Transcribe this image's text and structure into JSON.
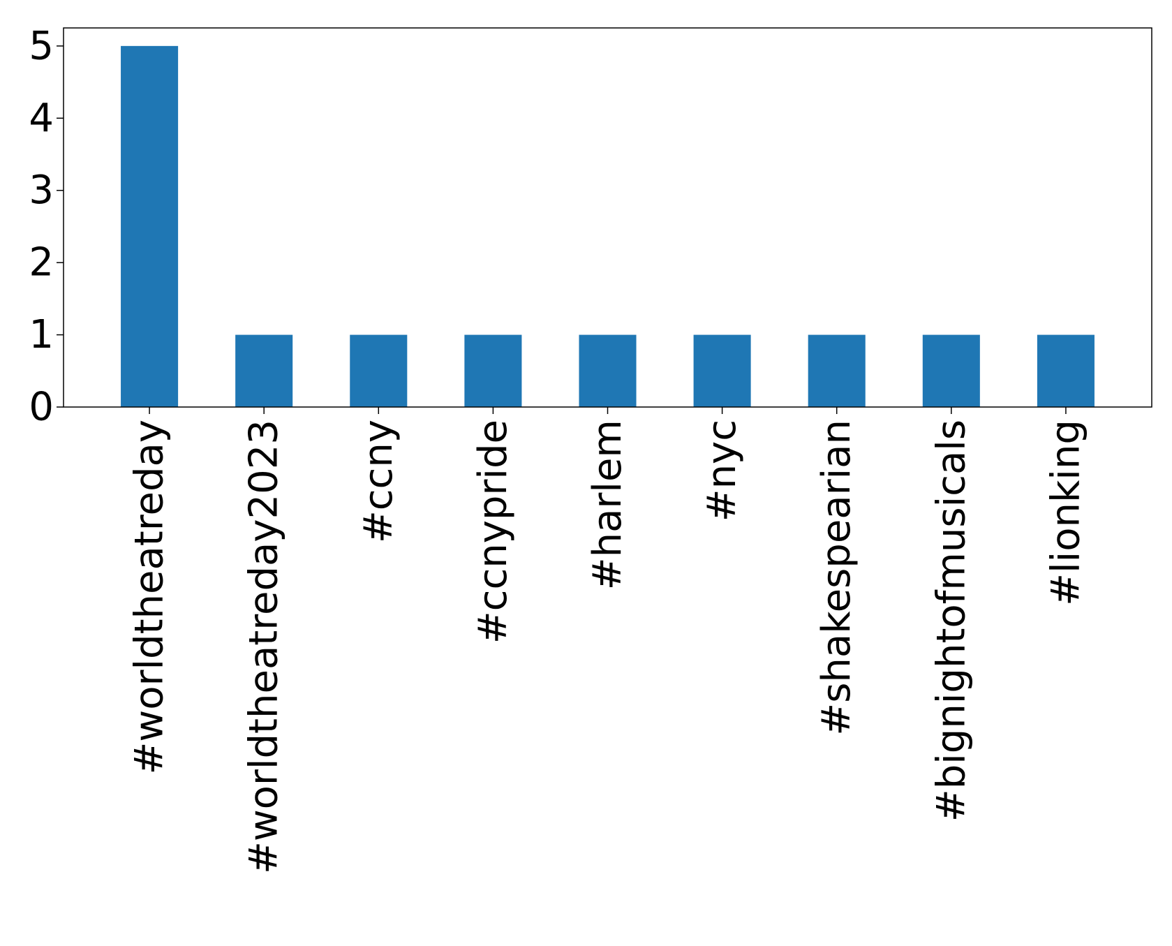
{
  "chart_data": {
    "type": "bar",
    "categories": [
      "#worldtheatreday",
      "#worldtheatreday2023",
      "#ccny",
      "#ccnypride",
      "#harlem",
      "#nyc",
      "#shakespearian",
      "#bignightofmusicals",
      "#lionking"
    ],
    "values": [
      5,
      1,
      1,
      1,
      1,
      1,
      1,
      1,
      1
    ],
    "yticks": [
      "0",
      "1",
      "2",
      "3",
      "4",
      "5"
    ],
    "ylim": [
      0,
      5.25
    ],
    "grid": false,
    "legend": "none",
    "bar_color": "#1f77b4"
  }
}
